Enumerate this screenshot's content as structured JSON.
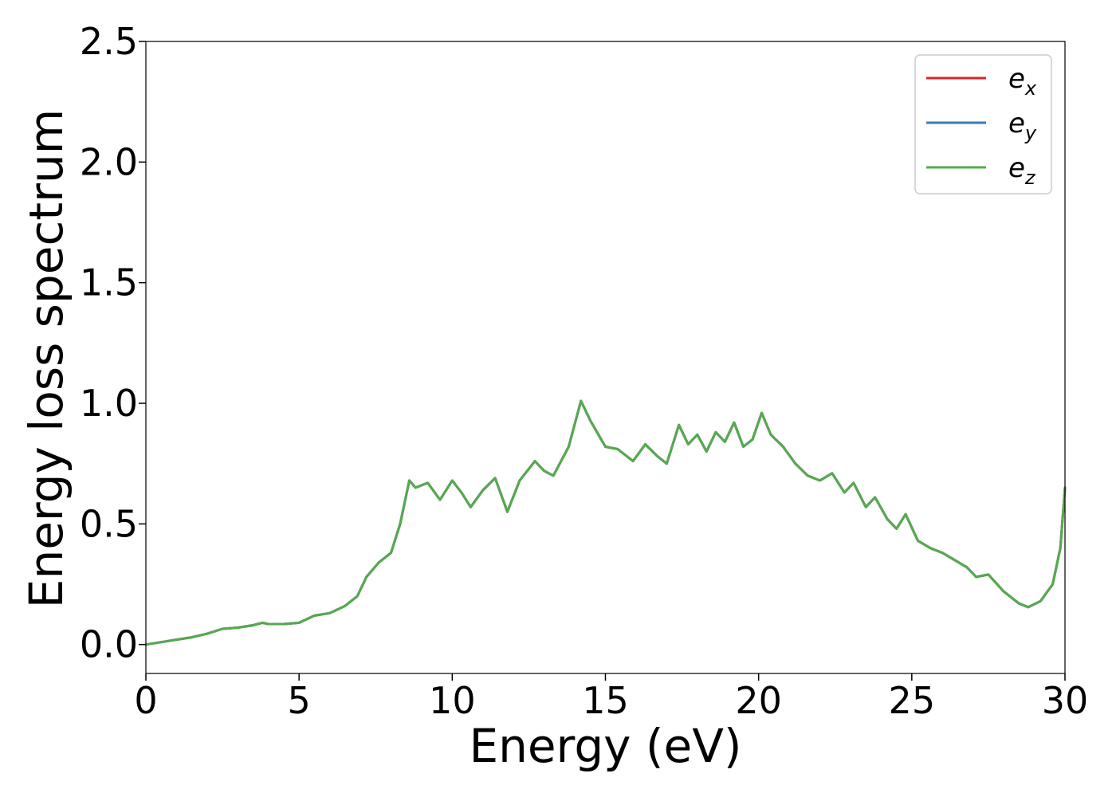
{
  "chart_data": {
    "type": "line",
    "title": "",
    "xlabel": "Energy (eV)",
    "ylabel": "Energy loss spectrum",
    "xlim": [
      0,
      30
    ],
    "ylim": [
      -0.12,
      2.5
    ],
    "xticks": [
      0,
      5,
      10,
      15,
      20,
      25,
      30
    ],
    "xtick_labels": [
      "0",
      "5",
      "10",
      "15",
      "20",
      "25",
      "30"
    ],
    "yticks": [
      0.0,
      0.5,
      1.0,
      1.5,
      2.0,
      2.5
    ],
    "ytick_labels": [
      "0.0",
      "0.5",
      "1.0",
      "1.5",
      "2.0",
      "2.5"
    ],
    "grid": false,
    "legend_position": "top-right",
    "legend": [
      {
        "base": "e",
        "sub": "x",
        "color": "#d62728"
      },
      {
        "base": "e",
        "sub": "y",
        "color": "#3a78b5"
      },
      {
        "base": "e",
        "sub": "z",
        "color": "#55aa4d"
      }
    ],
    "x": [
      0,
      0.5,
      1.0,
      1.5,
      2.0,
      2.5,
      3.0,
      3.5,
      3.8,
      4.0,
      4.5,
      5.0,
      5.5,
      6.0,
      6.5,
      6.9,
      7.2,
      7.6,
      8.0,
      8.3,
      8.6,
      8.8,
      9.2,
      9.6,
      10.0,
      10.3,
      10.6,
      11.0,
      11.4,
      11.8,
      12.2,
      12.7,
      13.0,
      13.3,
      13.8,
      14.2,
      14.5,
      15.0,
      15.4,
      15.9,
      16.3,
      16.7,
      17.0,
      17.4,
      17.7,
      18.0,
      18.3,
      18.6,
      18.9,
      19.2,
      19.5,
      19.8,
      20.1,
      20.4,
      20.8,
      21.2,
      21.6,
      22.0,
      22.4,
      22.8,
      23.1,
      23.5,
      23.8,
      24.2,
      24.5,
      24.8,
      25.2,
      25.6,
      26.0,
      26.4,
      26.8,
      27.1,
      27.5,
      28.0,
      28.5,
      28.8,
      29.2,
      29.6,
      29.85,
      30.0
    ],
    "series": [
      {
        "values": [
          0.0,
          0.01,
          0.02,
          0.03,
          0.045,
          0.065,
          0.07,
          0.08,
          0.09,
          0.085,
          0.085,
          0.09,
          0.12,
          0.13,
          0.16,
          0.2,
          0.28,
          0.34,
          0.38,
          0.5,
          0.68,
          0.65,
          0.67,
          0.6,
          0.68,
          0.63,
          0.57,
          0.64,
          0.69,
          0.55,
          0.68,
          0.76,
          0.72,
          0.7,
          0.82,
          1.01,
          0.93,
          0.82,
          0.81,
          0.76,
          0.83,
          0.78,
          0.75,
          0.91,
          0.83,
          0.87,
          0.8,
          0.88,
          0.84,
          0.92,
          0.82,
          0.85,
          0.96,
          0.87,
          0.82,
          0.75,
          0.7,
          0.68,
          0.71,
          0.63,
          0.67,
          0.57,
          0.61,
          0.52,
          0.48,
          0.54,
          0.43,
          0.4,
          0.38,
          0.35,
          0.32,
          0.28,
          0.29,
          0.22,
          0.17,
          0.155,
          0.18,
          0.25,
          0.4,
          0.65
        ]
      },
      {
        "values": [
          0.0,
          0.01,
          0.02,
          0.03,
          0.045,
          0.065,
          0.07,
          0.08,
          0.09,
          0.085,
          0.085,
          0.09,
          0.12,
          0.13,
          0.16,
          0.2,
          0.28,
          0.34,
          0.38,
          0.5,
          0.68,
          0.65,
          0.67,
          0.6,
          0.68,
          0.63,
          0.57,
          0.64,
          0.69,
          0.55,
          0.68,
          0.76,
          0.72,
          0.7,
          0.82,
          1.01,
          0.93,
          0.82,
          0.81,
          0.76,
          0.83,
          0.78,
          0.75,
          0.91,
          0.83,
          0.87,
          0.8,
          0.88,
          0.84,
          0.92,
          0.82,
          0.85,
          0.96,
          0.87,
          0.82,
          0.75,
          0.7,
          0.68,
          0.71,
          0.63,
          0.67,
          0.57,
          0.61,
          0.52,
          0.48,
          0.54,
          0.43,
          0.4,
          0.38,
          0.35,
          0.32,
          0.28,
          0.29,
          0.22,
          0.17,
          0.155,
          0.18,
          0.25,
          0.4,
          0.65
        ]
      },
      {
        "values": [
          0.0,
          0.01,
          0.02,
          0.03,
          0.045,
          0.065,
          0.07,
          0.08,
          0.09,
          0.085,
          0.085,
          0.09,
          0.12,
          0.13,
          0.16,
          0.2,
          0.28,
          0.34,
          0.38,
          0.5,
          0.68,
          0.65,
          0.67,
          0.6,
          0.68,
          0.63,
          0.57,
          0.64,
          0.69,
          0.55,
          0.68,
          0.76,
          0.72,
          0.7,
          0.82,
          1.01,
          0.93,
          0.82,
          0.81,
          0.76,
          0.83,
          0.78,
          0.75,
          0.91,
          0.83,
          0.87,
          0.8,
          0.88,
          0.84,
          0.92,
          0.82,
          0.85,
          0.96,
          0.87,
          0.82,
          0.75,
          0.7,
          0.68,
          0.71,
          0.63,
          0.67,
          0.57,
          0.61,
          0.52,
          0.48,
          0.54,
          0.43,
          0.4,
          0.38,
          0.35,
          0.32,
          0.28,
          0.29,
          0.22,
          0.17,
          0.155,
          0.18,
          0.25,
          0.4,
          0.65
        ]
      }
    ]
  }
}
